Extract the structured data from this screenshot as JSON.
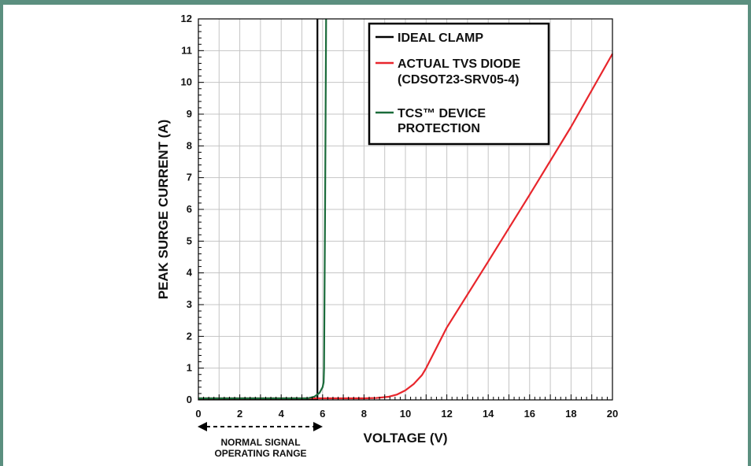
{
  "chart_data": {
    "type": "line",
    "xlabel": "VOLTAGE (V)",
    "ylabel": "PEAK SURGE CURRENT (A)",
    "xlim": [
      0,
      20
    ],
    "ylim": [
      0,
      12
    ],
    "x_ticks": [
      0,
      2,
      4,
      6,
      8,
      10,
      12,
      14,
      16,
      18,
      20
    ],
    "y_ticks": [
      0,
      1,
      2,
      3,
      4,
      5,
      6,
      7,
      8,
      9,
      10,
      11,
      12
    ],
    "grid": true,
    "legend_position": "top-right",
    "series": [
      {
        "name": "IDEAL CLAMP",
        "color": "#000000",
        "points": [
          [
            0,
            0.03
          ],
          [
            5.75,
            0.03
          ],
          [
            5.75,
            12
          ]
        ]
      },
      {
        "name": "ACTUAL TVS DIODE (CDSOT23-SRV05-4)",
        "color": "#e8262c",
        "points": [
          [
            0,
            0.05
          ],
          [
            8.0,
            0.05
          ],
          [
            8.6,
            0.06
          ],
          [
            9.2,
            0.1
          ],
          [
            9.6,
            0.17
          ],
          [
            10.0,
            0.3
          ],
          [
            10.4,
            0.5
          ],
          [
            10.8,
            0.78
          ],
          [
            11.0,
            1.0
          ],
          [
            12.0,
            2.28
          ],
          [
            14.0,
            4.36
          ],
          [
            16.0,
            6.46
          ],
          [
            18.0,
            8.6
          ],
          [
            20.0,
            10.9
          ]
        ]
      },
      {
        "name": "TCS™ DEVICE PROTECTION",
        "color": "#1a6b3a",
        "points": [
          [
            0,
            0.05
          ],
          [
            5.3,
            0.05
          ],
          [
            5.6,
            0.1
          ],
          [
            5.85,
            0.22
          ],
          [
            6.0,
            0.4
          ],
          [
            6.05,
            0.55
          ],
          [
            6.07,
            1.0
          ],
          [
            6.12,
            6.0
          ],
          [
            6.17,
            12
          ]
        ]
      }
    ],
    "annotation": {
      "lines": [
        "NORMAL SIGNAL",
        "OPERATING RANGE"
      ],
      "x_range": [
        0,
        6
      ]
    }
  }
}
